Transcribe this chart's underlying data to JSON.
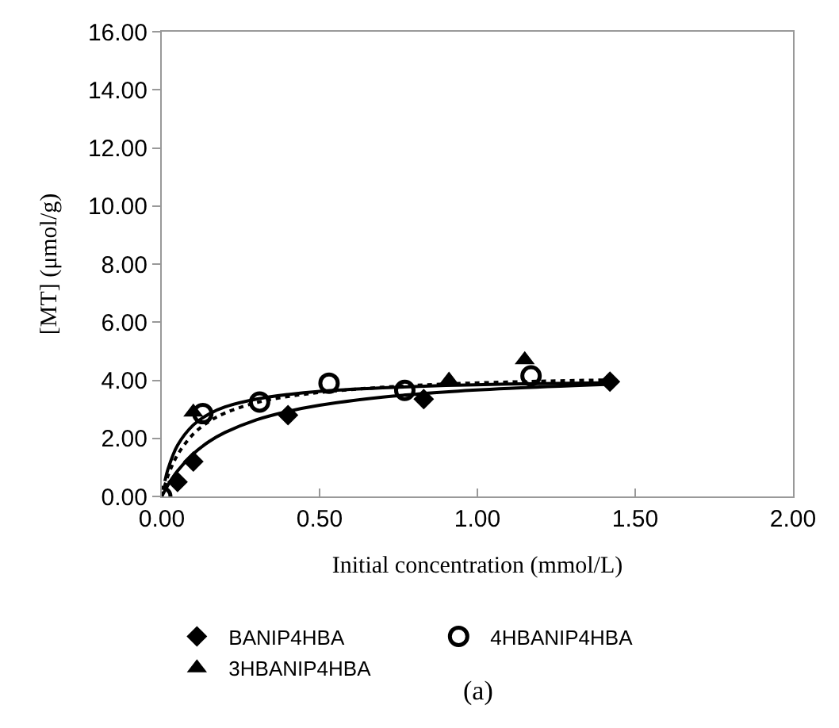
{
  "chart_data": {
    "type": "scatter",
    "xlabel": "Initial concentration (mmol/L)",
    "ylabel": "[MT] (μmol/g)",
    "xlim": [
      0,
      2
    ],
    "xticks": [
      {
        "value": 0,
        "label": "0.00"
      },
      {
        "value": 0.5,
        "label": "0.50"
      },
      {
        "value": 1,
        "label": "1.00"
      },
      {
        "value": 1.5,
        "label": "1.50"
      },
      {
        "value": 2,
        "label": "2.00"
      }
    ],
    "ylim": [
      0,
      16
    ],
    "yticks": [
      {
        "value": 0,
        "label": "0.00"
      },
      {
        "value": 2,
        "label": "2.00"
      },
      {
        "value": 4,
        "label": "4.00"
      },
      {
        "value": 6,
        "label": "6.00"
      },
      {
        "value": 8,
        "label": "8.00"
      },
      {
        "value": 10,
        "label": "10.00"
      },
      {
        "value": 12,
        "label": "12.00"
      },
      {
        "value": 14,
        "label": "14.00"
      },
      {
        "value": 16,
        "label": "16.00"
      }
    ],
    "legend": "bottom",
    "annotations": [
      "(a)"
    ],
    "series": [
      {
        "type": "line",
        "color": "#000000",
        "line_style": "solid",
        "marker": "none",
        "x": [
          0,
          0.02,
          0.05,
          0.1,
          0.15,
          0.2,
          0.3,
          0.4,
          0.5,
          0.7,
          0.9,
          1.1,
          1.42
        ],
        "values": [
          0,
          0.4,
          0.88,
          1.47,
          1.89,
          2.2,
          2.64,
          2.93,
          3.14,
          3.42,
          3.6,
          3.72,
          3.86
        ]
      },
      {
        "type": "line",
        "color": "#000000",
        "line_style": "solid",
        "marker": "none",
        "x": [
          0.01,
          0.02,
          0.05,
          0.1,
          0.15,
          0.2,
          0.3,
          0.4,
          0.5,
          0.7,
          0.9,
          1.1,
          1.4
        ],
        "values": [
          0.53,
          0.95,
          1.76,
          2.46,
          2.84,
          3.08,
          3.35,
          3.51,
          3.62,
          3.74,
          3.82,
          3.87,
          3.91
        ]
      },
      {
        "type": "line",
        "color": "#000000",
        "line_style": "dotted",
        "marker": "none",
        "x": [
          0,
          0.02,
          0.05,
          0.1,
          0.15,
          0.2,
          0.3,
          0.4,
          0.5,
          0.7,
          0.9,
          1.1,
          1.4
        ],
        "values": [
          0,
          0.72,
          1.43,
          2.15,
          2.58,
          2.87,
          3.23,
          3.44,
          3.58,
          3.76,
          3.87,
          3.94,
          4.01
        ]
      },
      {
        "name": "BANIP4HBA",
        "color": "#000000",
        "marker": "diamond",
        "x": [
          0.05,
          0.1,
          0.4,
          0.83,
          1.42
        ],
        "values": [
          0.5,
          1.2,
          2.8,
          3.35,
          3.95
        ]
      },
      {
        "name": "4HBANIP4HBA",
        "color": "#000000",
        "marker": "circle-open",
        "x": [
          0,
          0.13,
          0.31,
          0.53,
          0.77,
          1.17
        ],
        "values": [
          0,
          2.85,
          3.25,
          3.9,
          3.65,
          4.15
        ]
      },
      {
        "name": "3HBANIP4HBA",
        "color": "#000000",
        "marker": "triangle",
        "x": [
          0.1,
          0.91,
          1.15
        ],
        "values": [
          2.9,
          4.0,
          4.7
        ]
      }
    ]
  }
}
